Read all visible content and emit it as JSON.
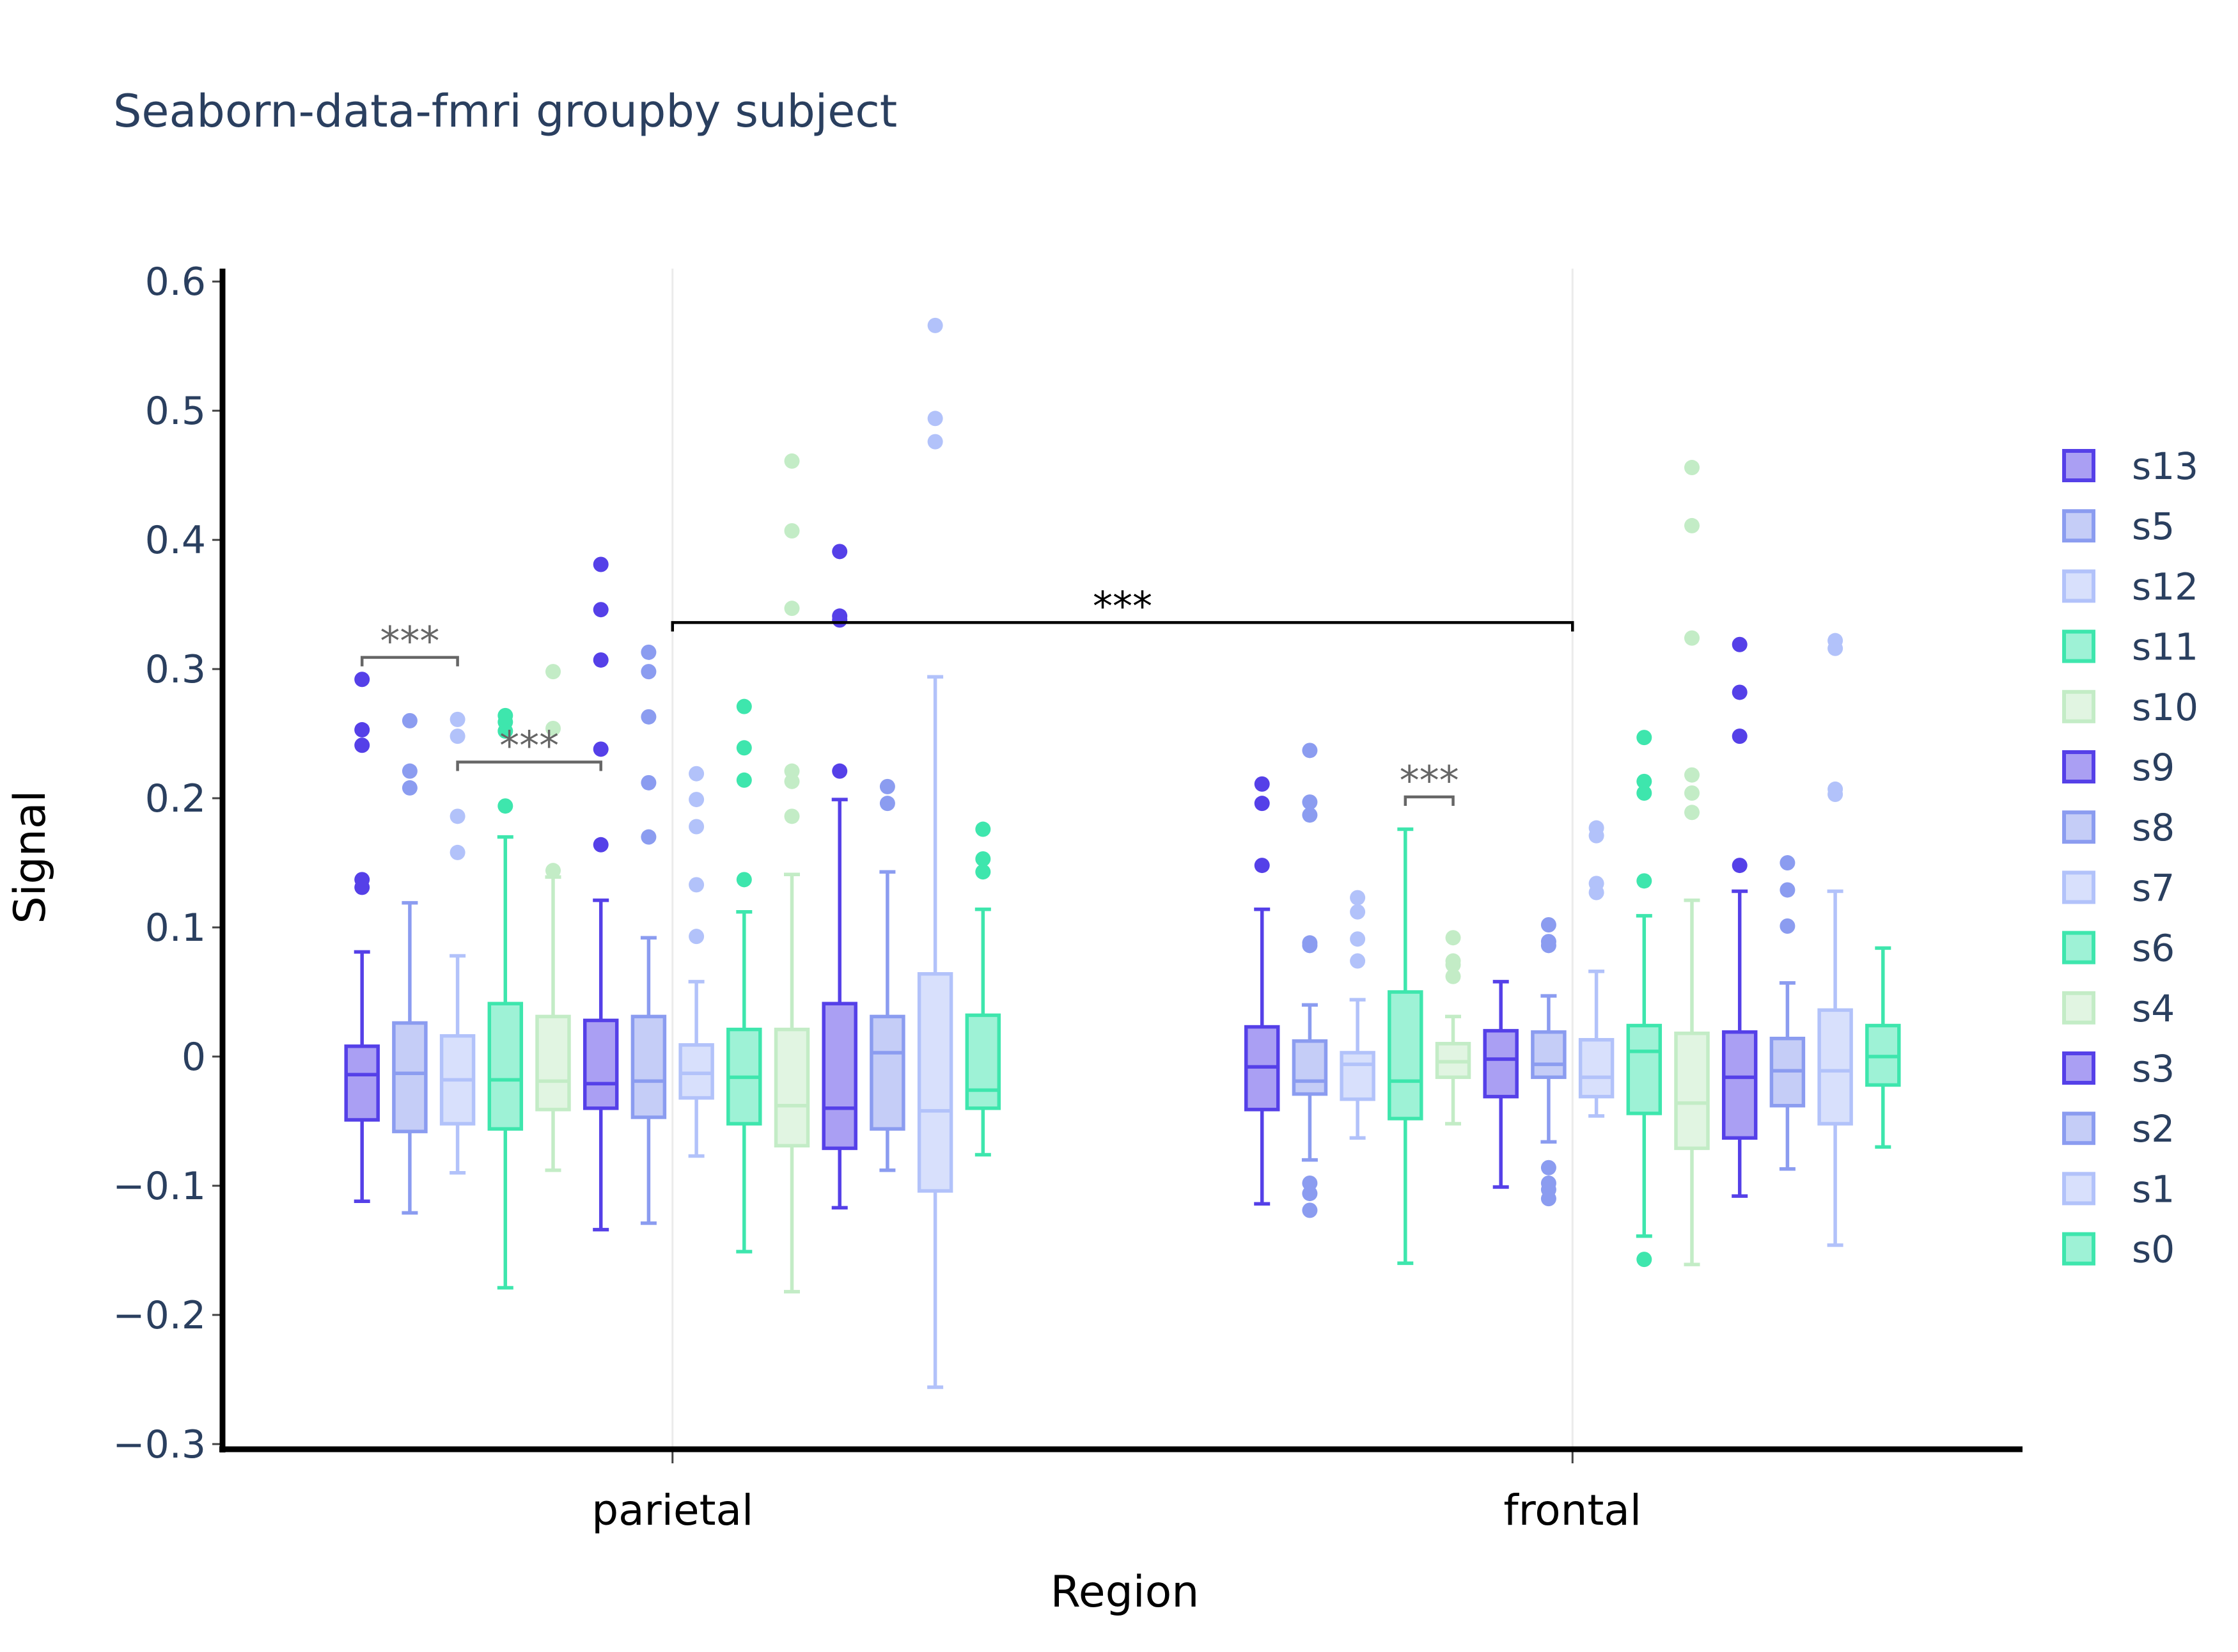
{
  "chart_data": {
    "type": "box",
    "title": "Seaborn-data-fmri groupby subject",
    "x_label": "Region",
    "y_label": "Signal",
    "categories": [
      "parietal",
      "frontal"
    ],
    "ylim": [
      -0.304,
      0.61
    ],
    "yticks": [
      {
        "value": -0.3,
        "label": "−0.3"
      },
      {
        "value": -0.2,
        "label": "−0.2"
      },
      {
        "value": -0.1,
        "label": "−0.1"
      },
      0,
      0.1,
      0.2,
      0.3,
      0.4,
      0.5,
      0.6
    ],
    "grid": "x",
    "legend": "right",
    "series": [
      {
        "name": "s13",
        "color": "#5540e8",
        "boxes": [
          {
            "lowerfence": -0.112,
            "q1": -0.049,
            "median": -0.014,
            "q3": 0.008,
            "upperfence": 0.081,
            "outliers": [
              0.292,
              0.253,
              0.241,
              0.137,
              0.131
            ]
          },
          {
            "lowerfence": -0.114,
            "q1": -0.041,
            "median": -0.008,
            "q3": 0.023,
            "upperfence": 0.114,
            "outliers": [
              0.211,
              0.196,
              0.148
            ]
          }
        ]
      },
      {
        "name": "s5",
        "color": "#8b9cf0",
        "boxes": [
          {
            "lowerfence": -0.121,
            "q1": -0.058,
            "median": -0.013,
            "q3": 0.026,
            "upperfence": 0.119,
            "outliers": [
              0.26,
              0.221,
              0.208
            ]
          },
          {
            "lowerfence": -0.08,
            "q1": -0.029,
            "median": -0.019,
            "q3": 0.012,
            "upperfence": 0.04,
            "outliers": [
              0.237,
              0.197,
              0.187,
              0.088,
              0.086,
              -0.098,
              -0.106,
              -0.119
            ]
          }
        ]
      },
      {
        "name": "s12",
        "color": "#b2c2fa",
        "boxes": [
          {
            "lowerfence": -0.09,
            "q1": -0.052,
            "median": -0.018,
            "q3": 0.016,
            "upperfence": 0.078,
            "outliers": [
              0.261,
              0.248,
              0.186,
              0.158
            ]
          },
          {
            "lowerfence": -0.063,
            "q1": -0.033,
            "median": -0.006,
            "q3": 0.003,
            "upperfence": 0.044,
            "outliers": [
              0.123,
              0.112,
              0.091,
              0.074
            ]
          }
        ]
      },
      {
        "name": "s11",
        "color": "#3ee6ad",
        "boxes": [
          {
            "lowerfence": -0.179,
            "q1": -0.056,
            "median": -0.018,
            "q3": 0.041,
            "upperfence": 0.17,
            "outliers": [
              0.264,
              0.259,
              0.252,
              0.194
            ]
          },
          {
            "lowerfence": -0.16,
            "q1": -0.048,
            "median": -0.019,
            "q3": 0.05,
            "upperfence": 0.176,
            "outliers": []
          }
        ]
      },
      {
        "name": "s10",
        "color": "#c3ecc6",
        "boxes": [
          {
            "lowerfence": -0.088,
            "q1": -0.041,
            "median": -0.019,
            "q3": 0.031,
            "upperfence": 0.139,
            "outliers": [
              0.298,
              0.254,
              0.144
            ]
          },
          {
            "lowerfence": -0.052,
            "q1": -0.016,
            "median": -0.004,
            "q3": 0.01,
            "upperfence": 0.031,
            "outliers": [
              0.092,
              0.074,
              0.071,
              0.062
            ]
          }
        ]
      },
      {
        "name": "s9",
        "color": "#5540e8",
        "boxes": [
          {
            "lowerfence": -0.134,
            "q1": -0.04,
            "median": -0.021,
            "q3": 0.028,
            "upperfence": 0.121,
            "outliers": [
              0.381,
              0.346,
              0.307,
              0.238,
              0.164
            ]
          },
          {
            "lowerfence": -0.101,
            "q1": -0.031,
            "median": -0.002,
            "q3": 0.02,
            "upperfence": 0.058,
            "outliers": []
          }
        ]
      },
      {
        "name": "s8",
        "color": "#8b9cf0",
        "boxes": [
          {
            "lowerfence": -0.129,
            "q1": -0.047,
            "median": -0.019,
            "q3": 0.031,
            "upperfence": 0.092,
            "outliers": [
              0.313,
              0.298,
              0.263,
              0.212,
              0.17
            ]
          },
          {
            "lowerfence": -0.066,
            "q1": -0.016,
            "median": -0.006,
            "q3": 0.019,
            "upperfence": 0.047,
            "outliers": [
              0.102,
              0.089,
              0.086,
              -0.086,
              -0.098,
              -0.103,
              -0.11
            ]
          }
        ]
      },
      {
        "name": "s7",
        "color": "#b2c2fa",
        "boxes": [
          {
            "lowerfence": -0.077,
            "q1": -0.032,
            "median": -0.013,
            "q3": 0.009,
            "upperfence": 0.058,
            "outliers": [
              0.219,
              0.199,
              0.178,
              0.133,
              0.093
            ]
          },
          {
            "lowerfence": -0.046,
            "q1": -0.031,
            "median": -0.016,
            "q3": 0.013,
            "upperfence": 0.066,
            "outliers": [
              0.177,
              0.171,
              0.134,
              0.127
            ]
          }
        ]
      },
      {
        "name": "s6",
        "color": "#3ee6ad",
        "boxes": [
          {
            "lowerfence": -0.151,
            "q1": -0.052,
            "median": -0.016,
            "q3": 0.021,
            "upperfence": 0.112,
            "outliers": [
              0.271,
              0.239,
              0.214,
              0.137
            ]
          },
          {
            "lowerfence": -0.139,
            "q1": -0.044,
            "median": 0.004,
            "q3": 0.024,
            "upperfence": 0.109,
            "outliers": [
              0.247,
              0.213,
              0.204,
              0.136,
              -0.157
            ]
          }
        ]
      },
      {
        "name": "s4",
        "color": "#c3ecc6",
        "boxes": [
          {
            "lowerfence": -0.182,
            "q1": -0.069,
            "median": -0.038,
            "q3": 0.021,
            "upperfence": 0.141,
            "outliers": [
              0.461,
              0.407,
              0.347,
              0.221,
              0.213,
              0.186
            ]
          },
          {
            "lowerfence": -0.161,
            "q1": -0.071,
            "median": -0.036,
            "q3": 0.018,
            "upperfence": 0.121,
            "outliers": [
              0.456,
              0.411,
              0.324,
              0.218,
              0.204,
              0.189
            ]
          }
        ]
      },
      {
        "name": "s3",
        "color": "#5540e8",
        "boxes": [
          {
            "lowerfence": -0.117,
            "q1": -0.071,
            "median": -0.04,
            "q3": 0.041,
            "upperfence": 0.199,
            "outliers": [
              0.391,
              0.341,
              0.338,
              0.221
            ]
          },
          {
            "lowerfence": -0.108,
            "q1": -0.063,
            "median": -0.016,
            "q3": 0.019,
            "upperfence": 0.128,
            "outliers": [
              0.319,
              0.282,
              0.248,
              0.148
            ]
          }
        ]
      },
      {
        "name": "s2",
        "color": "#8b9cf0",
        "boxes": [
          {
            "lowerfence": -0.088,
            "q1": -0.056,
            "median": 0.003,
            "q3": 0.031,
            "upperfence": 0.143,
            "outliers": [
              0.209,
              0.196
            ]
          },
          {
            "lowerfence": -0.087,
            "q1": -0.038,
            "median": -0.011,
            "q3": 0.014,
            "upperfence": 0.057,
            "outliers": [
              0.15,
              0.129,
              0.101
            ]
          }
        ]
      },
      {
        "name": "s1",
        "color": "#b2c2fa",
        "boxes": [
          {
            "lowerfence": -0.256,
            "q1": -0.104,
            "median": -0.042,
            "q3": 0.064,
            "upperfence": 0.294,
            "outliers": [
              0.566,
              0.494,
              0.476
            ]
          },
          {
            "lowerfence": -0.146,
            "q1": -0.052,
            "median": -0.011,
            "q3": 0.036,
            "upperfence": 0.128,
            "outliers": [
              0.322,
              0.316,
              0.207,
              0.203
            ]
          }
        ]
      },
      {
        "name": "s0",
        "color": "#3ee6ad",
        "boxes": [
          {
            "lowerfence": -0.076,
            "q1": -0.04,
            "median": -0.026,
            "q3": 0.032,
            "upperfence": 0.114,
            "outliers": [
              0.176,
              0.153,
              0.143
            ]
          },
          {
            "lowerfence": -0.07,
            "q1": -0.022,
            "median": 0,
            "q3": 0.024,
            "upperfence": 0.084,
            "outliers": []
          }
        ]
      }
    ],
    "annotations": [
      {
        "text": "***",
        "y": 0.309,
        "category": "parietal",
        "from": "s13",
        "to": "s12",
        "color": "#666666"
      },
      {
        "text": "***",
        "y": 0.228,
        "category": "parietal",
        "from": "s12",
        "to": "s9",
        "color": "#666666"
      },
      {
        "text": "***",
        "y": 0.336,
        "from": "parietal",
        "to": "frontal",
        "color": "#000000"
      },
      {
        "text": "***",
        "y": 0.201,
        "category": "frontal",
        "from": "s11",
        "to": "s10",
        "color": "#666666"
      }
    ]
  }
}
